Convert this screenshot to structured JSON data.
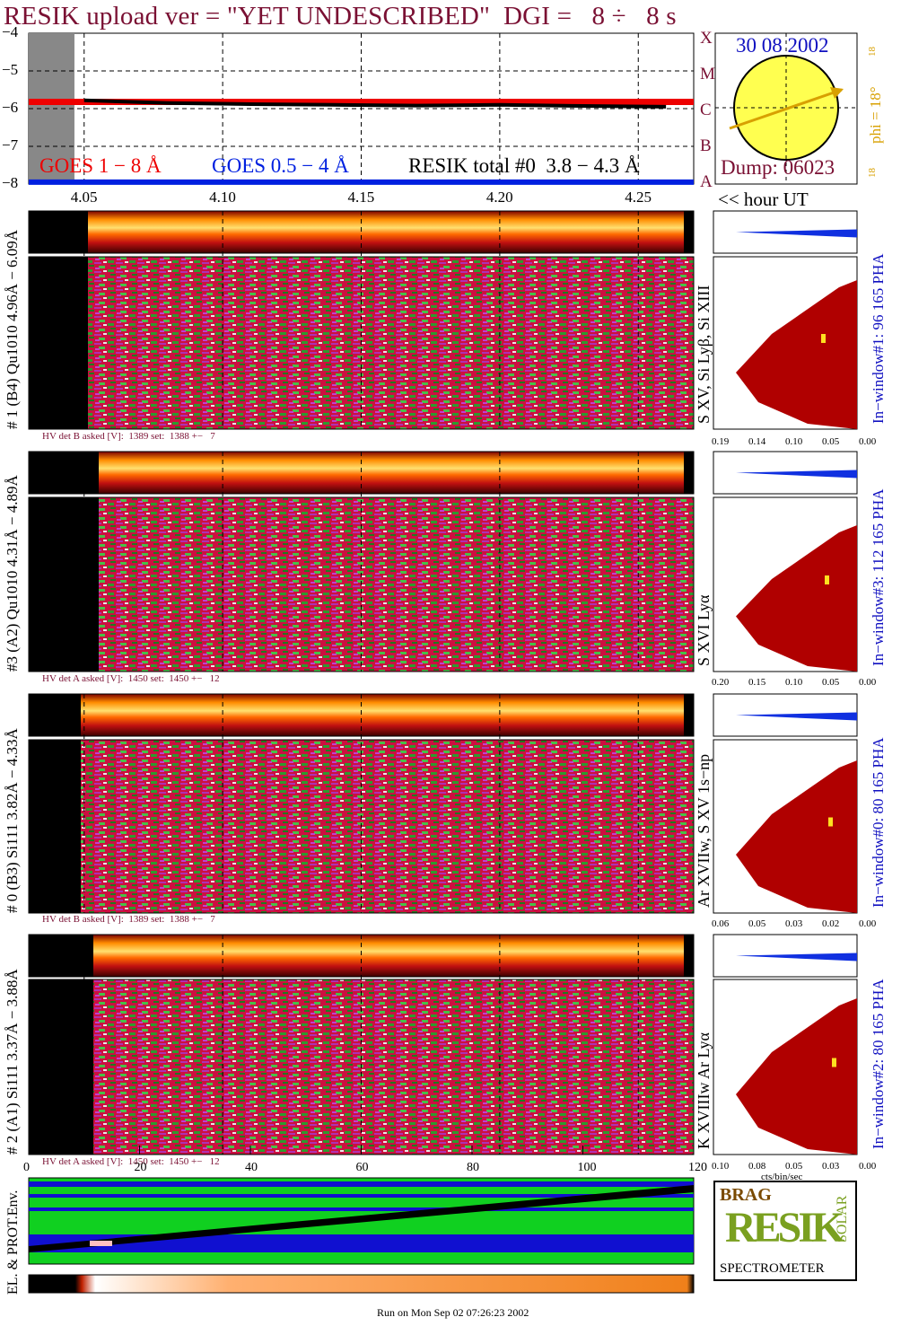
{
  "title": "RESIK upload ver = \"YET UNDESCRIBED\"  DGI =   8 ÷   8 s",
  "sun": {
    "date": "30 08 2002",
    "dump": "Dump: 06023",
    "phi": "phi = 18°",
    "phi_small_top": "18",
    "phi_small_bot": "18"
  },
  "goes": {
    "yticks": [
      "−4",
      "−5",
      "−6",
      "−7",
      "−8"
    ],
    "class_letters": [
      "X",
      "M",
      "C",
      "B",
      "A"
    ],
    "legend_goes18": "GOES 1 − 8 Å",
    "legend_goes054": "GOES 0.5 − 4 Å",
    "legend_resik": "RESIK total #0  3.8 − 4.3 Å",
    "colors": {
      "goes18": "#ee0000",
      "goes054": "#0020e0",
      "resik": "#000000"
    }
  },
  "time_axis": {
    "labels": [
      "4.05",
      "4.10",
      "4.15",
      "4.20",
      "4.25"
    ],
    "unit_label": "<< hour UT"
  },
  "channels": [
    {
      "left_label": "# 1 (B4) Qu1010 4.96Å − 6.09Å",
      "lines_label": "S XV, Si Lyβ, Si XIII",
      "window": "In−window#1:  96 165  PHA",
      "hv": "HV det B asked [V]:  1389 set:  1388 +−   7",
      "hist_ticks": [
        "0.19",
        "0.14",
        "0.10",
        "0.05",
        "0.00"
      ]
    },
    {
      "left_label": "#3 (A2) Qu1010  4.31Å − 4.89Å",
      "lines_label": "S XVI Lyα",
      "window": "In−window#3:  112 165  PHA",
      "hv": "HV det A asked [V]:  1450 set:  1450 +−   12",
      "hist_ticks": [
        "0.20",
        "0.15",
        "0.10",
        "0.05",
        "0.00"
      ]
    },
    {
      "left_label": "# 0 (B3) Si111  3.82Å − 4.33Å",
      "lines_label": "Ar XVIIw, S XV 1s−np",
      "window": "In−window#0:  80 165  PHA",
      "hv": "HV det B asked [V]:  1389 set:  1388 +−   7",
      "hist_ticks": [
        "0.06",
        "0.05",
        "0.03",
        "0.02",
        "0.00"
      ]
    },
    {
      "left_label": "# 2 (A1) Si111  3.37Å − 3.88Å",
      "lines_label": "K XVIIIw  Ar Lyα",
      "window": "In−window#2:  80 165  PHA",
      "hv": "HV det A asked [V]:  1450 set:  1450 +−   12",
      "hist_ticks": [
        "0.10",
        "0.08",
        "0.05",
        "0.03",
        "0.00"
      ]
    }
  ],
  "bin_axis": {
    "labels": [
      "0",
      "20",
      "40",
      "60",
      "80",
      "100",
      "120"
    ]
  },
  "hist_unit": "cts/bin/sec",
  "env_label": "EL. & PROT.Env.",
  "logo": {
    "top_letters": "BRAG",
    "main": "RESIK",
    "side": "SOLAR",
    "bottom": "SPECTROMETER"
  },
  "footer": "Run on Mon Sep 02 07:26:23 2002",
  "chart_data": {
    "type": "line",
    "title": "RESIK upload ver = \"YET UNDESCRIBED\"  DGI =   8 ÷   8 s",
    "xlabel": "",
    "ylabel": "",
    "x_tick_labels": [
      "4.05",
      "4.10",
      "4.15",
      "4.20",
      "4.25"
    ],
    "x_range_hours": [
      4.03,
      4.27
    ],
    "ylim": [
      -8,
      -4
    ],
    "series": [
      {
        "name": "GOES 1 − 8 Å",
        "x": [
          4.03,
          4.27
        ],
        "values": [
          -5.82,
          -5.82
        ]
      },
      {
        "name": "GOES 0.5 − 4 Å",
        "x": [
          4.03,
          4.27
        ],
        "values": [
          -7.95,
          -7.95
        ]
      },
      {
        "name": "RESIK total #0  3.8 − 4.3 Å",
        "x": [
          4.05,
          4.08,
          4.11,
          4.14,
          4.17,
          4.2,
          4.23,
          4.26
        ],
        "values": [
          -5.78,
          -5.85,
          -5.88,
          -5.9,
          -5.92,
          -5.9,
          -5.93,
          -5.95
        ]
      }
    ]
  }
}
